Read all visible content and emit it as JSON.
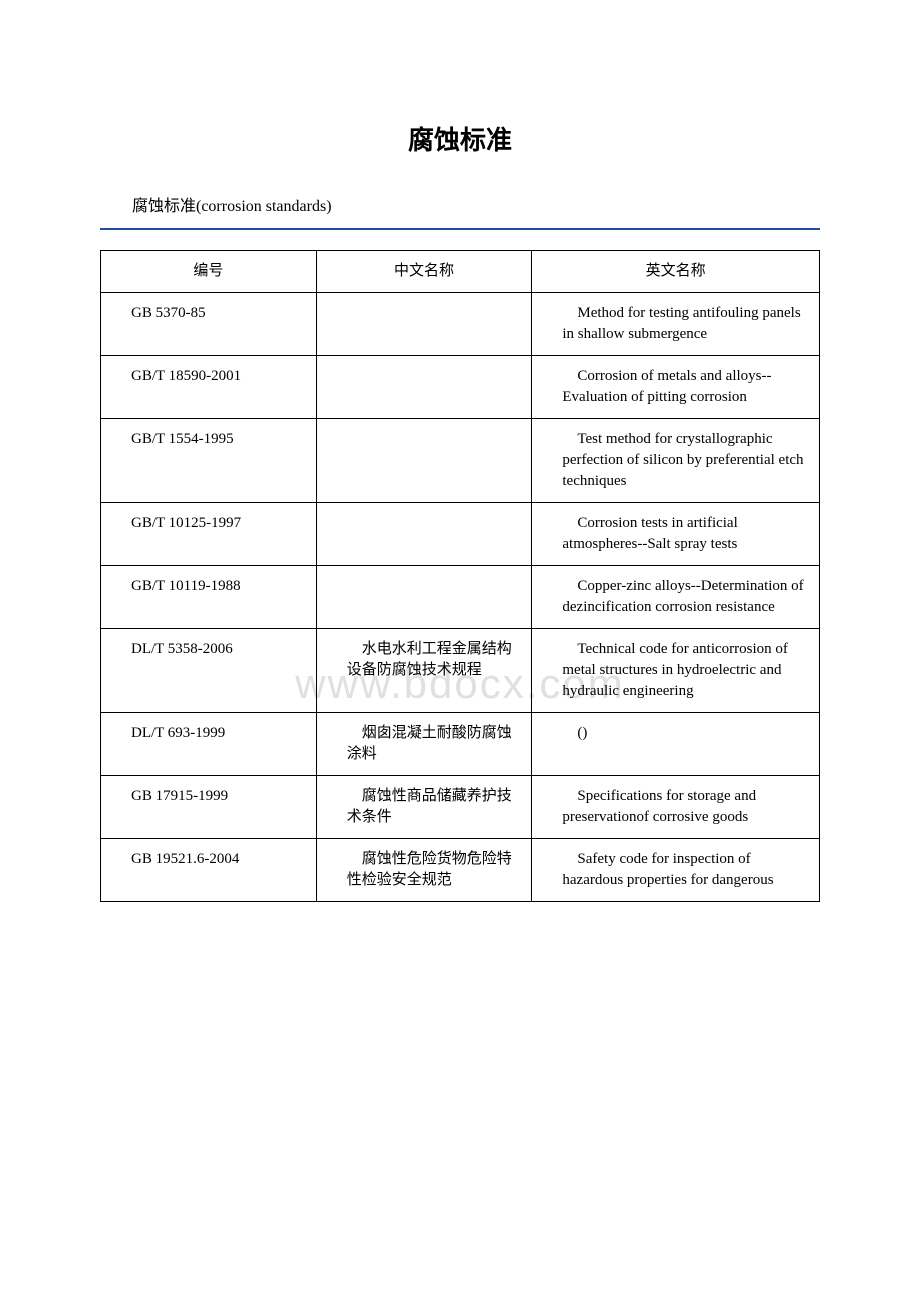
{
  "title": "腐蚀标准",
  "subtitle": "腐蚀标准(corrosion standards)",
  "watermark": "www.bdocx.com",
  "headers": {
    "code": "编号",
    "cn_name": "中文名称",
    "en_name": "英文名称"
  },
  "rows": [
    {
      "code": "GB 5370-85",
      "cn": "",
      "en": "　Method for testing antifouling panels in shallow submergence"
    },
    {
      "code": "GB/T 18590-2001",
      "cn": "",
      "en": "　Corrosion of metals and alloys--Evaluation of pitting corrosion"
    },
    {
      "code": "GB/T 1554-1995",
      "cn": "",
      "en": "　Test method for crystallographic perfection of silicon by preferential etch techniques"
    },
    {
      "code": "GB/T 10125-1997",
      "cn": "",
      "en": "　Corrosion tests in artificial atmospheres--Salt spray tests"
    },
    {
      "code": "GB/T 10119-1988",
      "cn": "",
      "en": "　Copper-zinc alloys--Determination of dezincification corrosion resistance"
    },
    {
      "code": "DL/T 5358-2006",
      "cn": "　水电水利工程金属结构设备防腐蚀技术规程",
      "en": "　Technical code for anticorrosion of metal structures in hydroelectric and hydraulic engineering"
    },
    {
      "code": "DL/T 693-1999",
      "cn": "　烟囱混凝土耐酸防腐蚀涂料",
      "en": "　()"
    },
    {
      "code": "GB 17915-1999",
      "cn": "　腐蚀性商品储藏养护技术条件",
      "en": "　Specifications for storage and preservationof corrosive goods"
    },
    {
      "code": "GB 19521.6-2004",
      "cn": "　腐蚀性危险货物危险特性检验安全规范",
      "en": "　Safety code for inspection of hazardous properties for dangerous"
    }
  ],
  "colors": {
    "background": "#ffffff",
    "text": "#000000",
    "divider": "#1e4e9c",
    "watermark": "#e0e0e0",
    "border": "#000000"
  }
}
